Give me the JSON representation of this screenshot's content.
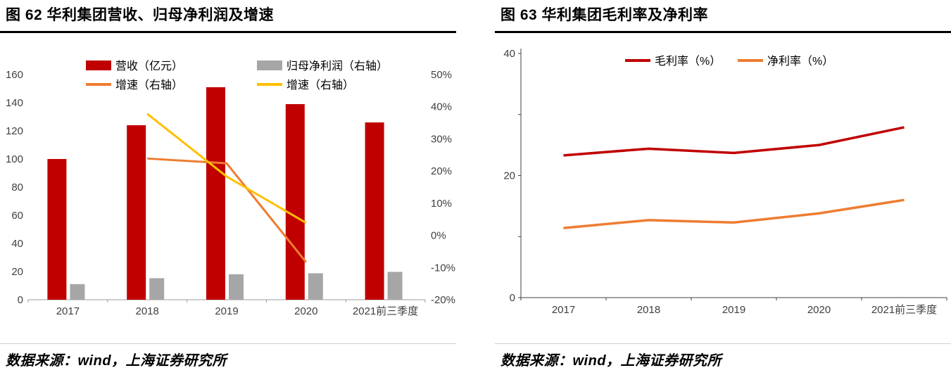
{
  "figures": [
    {
      "title": "图 62 华利集团营收、归母净利润及增速",
      "source": "数据来源：wind，上海证券研究所"
    },
    {
      "title": "图 63 华利集团毛利率及净利率",
      "source": "数据来源：wind，上海证券研究所"
    }
  ],
  "colors": {
    "revenue_red": "#c00000",
    "net_profit_gray": "#a6a6a6",
    "growth_orange": "#ed7d31",
    "growth_yellow": "#ffc000",
    "axis_gray": "#9c9c9c",
    "axis_dark": "#404040",
    "rule_black": "#000000",
    "rule_light": "#cfcfcf"
  },
  "chart_data": [
    {
      "type": "bar",
      "subtype": "bar-line-combo",
      "title": "图 62 华利集团营收、归母净利润及增速",
      "categories": [
        "2017",
        "2018",
        "2019",
        "2020",
        "2021前三季度"
      ],
      "series": [
        {
          "name": "营收（亿元）",
          "type": "bar",
          "axis": "left",
          "color": "#c00000",
          "values": [
            100,
            124,
            151,
            139,
            126
          ]
        },
        {
          "name": "归母净利润（右轴）",
          "type": "bar",
          "axis": "left",
          "color": "#a6a6a6",
          "values": [
            11.1,
            15.3,
            18.1,
            18.8,
            19.8
          ]
        },
        {
          "name": "增速（右轴）",
          "type": "line",
          "axis": "right",
          "color": "#ed7d31",
          "values": [
            null,
            23.9,
            22.4,
            -8.3,
            null
          ]
        },
        {
          "name": "增速（右轴）",
          "type": "line",
          "axis": "right",
          "color": "#ffc000",
          "values": [
            null,
            37.8,
            18.3,
            3.9,
            null
          ]
        }
      ],
      "left_axis": {
        "min": 0,
        "max": 160,
        "step": 20
      },
      "right_axis": {
        "min": -20,
        "max": 50,
        "step": 10,
        "format": "percent"
      },
      "legend_position": "top",
      "grid": false
    },
    {
      "type": "line",
      "title": "图 63 华利集团毛利率及净利率",
      "categories": [
        "2017",
        "2018",
        "2019",
        "2020",
        "2021前三季度"
      ],
      "series": [
        {
          "name": "毛利率（%）",
          "color": "#c00000",
          "values": [
            23.3,
            24.4,
            23.7,
            25.0,
            27.9
          ]
        },
        {
          "name": "净利率（%）",
          "color": "#ed7d31",
          "values": [
            11.4,
            12.7,
            12.3,
            13.8,
            16.0
          ]
        }
      ],
      "y_axis": {
        "min": 0,
        "max": 40,
        "tick_step": 10,
        "labeled_ticks": [
          0,
          20,
          40
        ]
      },
      "legend_position": "top",
      "grid": false
    }
  ]
}
